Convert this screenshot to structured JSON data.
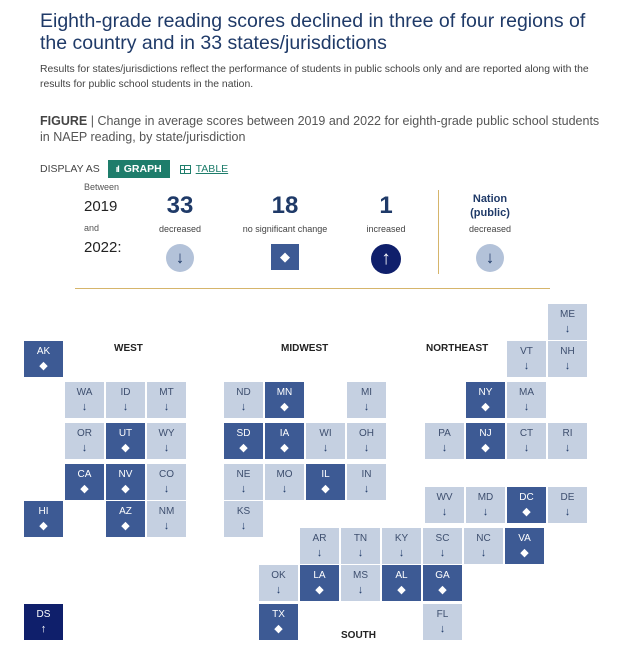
{
  "headline": "Eighth-grade reading scores declined in three of four regions of the country and in 33 states/jurisdictions",
  "subtext": "Results for states/jurisdictions reflect the performance of students in public schools only and are reported along with the results for public school students in the nation.",
  "figure": {
    "label": "FIGURE",
    "separator": " | ",
    "caption": "Change in average scores between 2019 and 2022 for eighth-grade public school students in NAEP reading, by state/jurisdiction"
  },
  "display": {
    "label": "DISPLAY AS",
    "graph_label": "GRAPH",
    "table_label": "TABLE"
  },
  "summary": {
    "between": "Between",
    "year1": "2019",
    "and": "and",
    "year2": "2022:",
    "decreased_count": "33",
    "decreased_label": "decreased",
    "no_change_count": "18",
    "no_change_label": "no significant change",
    "increased_count": "1",
    "increased_label": "increased",
    "nation_title_1": "Nation",
    "nation_title_2": "(public)",
    "nation_status": "decreased"
  },
  "colors": {
    "decreased": "#c5d0e1",
    "no_change": "#3d5a94",
    "increased": "#0f1f6b",
    "accent_teal": "#1e7d6b",
    "divider_gold": "#d6b56b",
    "title_navy": "#1f3a68"
  },
  "icons": {
    "decreased": "arrow-down-icon",
    "no_change": "diamond-icon",
    "increased": "arrow-up-icon"
  },
  "chart_data": {
    "type": "tile-map",
    "title": "Change in average scores between 2019 and 2022 for eighth-grade public school students in NAEP reading, by state/jurisdiction",
    "legend": [
      {
        "key": "decreased",
        "label": "decreased",
        "count": 33
      },
      {
        "key": "no_change",
        "label": "no significant change",
        "count": 18
      },
      {
        "key": "increased",
        "label": "increased",
        "count": 1
      }
    ],
    "regions": [
      "WEST",
      "MIDWEST",
      "NORTHEAST",
      "SOUTH"
    ],
    "states": [
      {
        "abbr": "AK",
        "status": "no_change"
      },
      {
        "abbr": "WA",
        "status": "decreased"
      },
      {
        "abbr": "ID",
        "status": "decreased"
      },
      {
        "abbr": "MT",
        "status": "decreased"
      },
      {
        "abbr": "OR",
        "status": "decreased"
      },
      {
        "abbr": "UT",
        "status": "no_change"
      },
      {
        "abbr": "WY",
        "status": "decreased"
      },
      {
        "abbr": "CA",
        "status": "no_change"
      },
      {
        "abbr": "NV",
        "status": "no_change"
      },
      {
        "abbr": "CO",
        "status": "decreased"
      },
      {
        "abbr": "HI",
        "status": "no_change"
      },
      {
        "abbr": "AZ",
        "status": "no_change"
      },
      {
        "abbr": "NM",
        "status": "decreased"
      },
      {
        "abbr": "DS",
        "status": "increased"
      },
      {
        "abbr": "ND",
        "status": "decreased"
      },
      {
        "abbr": "MN",
        "status": "no_change"
      },
      {
        "abbr": "MI",
        "status": "decreased"
      },
      {
        "abbr": "SD",
        "status": "no_change"
      },
      {
        "abbr": "IA",
        "status": "no_change"
      },
      {
        "abbr": "WI",
        "status": "decreased"
      },
      {
        "abbr": "OH",
        "status": "decreased"
      },
      {
        "abbr": "NE",
        "status": "decreased"
      },
      {
        "abbr": "MO",
        "status": "decreased"
      },
      {
        "abbr": "IL",
        "status": "no_change"
      },
      {
        "abbr": "IN",
        "status": "decreased"
      },
      {
        "abbr": "KS",
        "status": "decreased"
      },
      {
        "abbr": "ME",
        "status": "decreased"
      },
      {
        "abbr": "VT",
        "status": "decreased"
      },
      {
        "abbr": "NH",
        "status": "decreased"
      },
      {
        "abbr": "NY",
        "status": "no_change"
      },
      {
        "abbr": "MA",
        "status": "decreased"
      },
      {
        "abbr": "PA",
        "status": "decreased"
      },
      {
        "abbr": "NJ",
        "status": "no_change"
      },
      {
        "abbr": "CT",
        "status": "decreased"
      },
      {
        "abbr": "RI",
        "status": "decreased"
      },
      {
        "abbr": "WV",
        "status": "decreased"
      },
      {
        "abbr": "MD",
        "status": "decreased"
      },
      {
        "abbr": "DC",
        "status": "no_change"
      },
      {
        "abbr": "DE",
        "status": "decreased"
      },
      {
        "abbr": "AR",
        "status": "decreased"
      },
      {
        "abbr": "TN",
        "status": "decreased"
      },
      {
        "abbr": "KY",
        "status": "decreased"
      },
      {
        "abbr": "SC",
        "status": "decreased"
      },
      {
        "abbr": "NC",
        "status": "decreased"
      },
      {
        "abbr": "VA",
        "status": "no_change"
      },
      {
        "abbr": "OK",
        "status": "decreased"
      },
      {
        "abbr": "LA",
        "status": "no_change"
      },
      {
        "abbr": "MS",
        "status": "decreased"
      },
      {
        "abbr": "AL",
        "status": "no_change"
      },
      {
        "abbr": "GA",
        "status": "no_change"
      },
      {
        "abbr": "TX",
        "status": "no_change"
      },
      {
        "abbr": "FL",
        "status": "decreased"
      }
    ]
  }
}
